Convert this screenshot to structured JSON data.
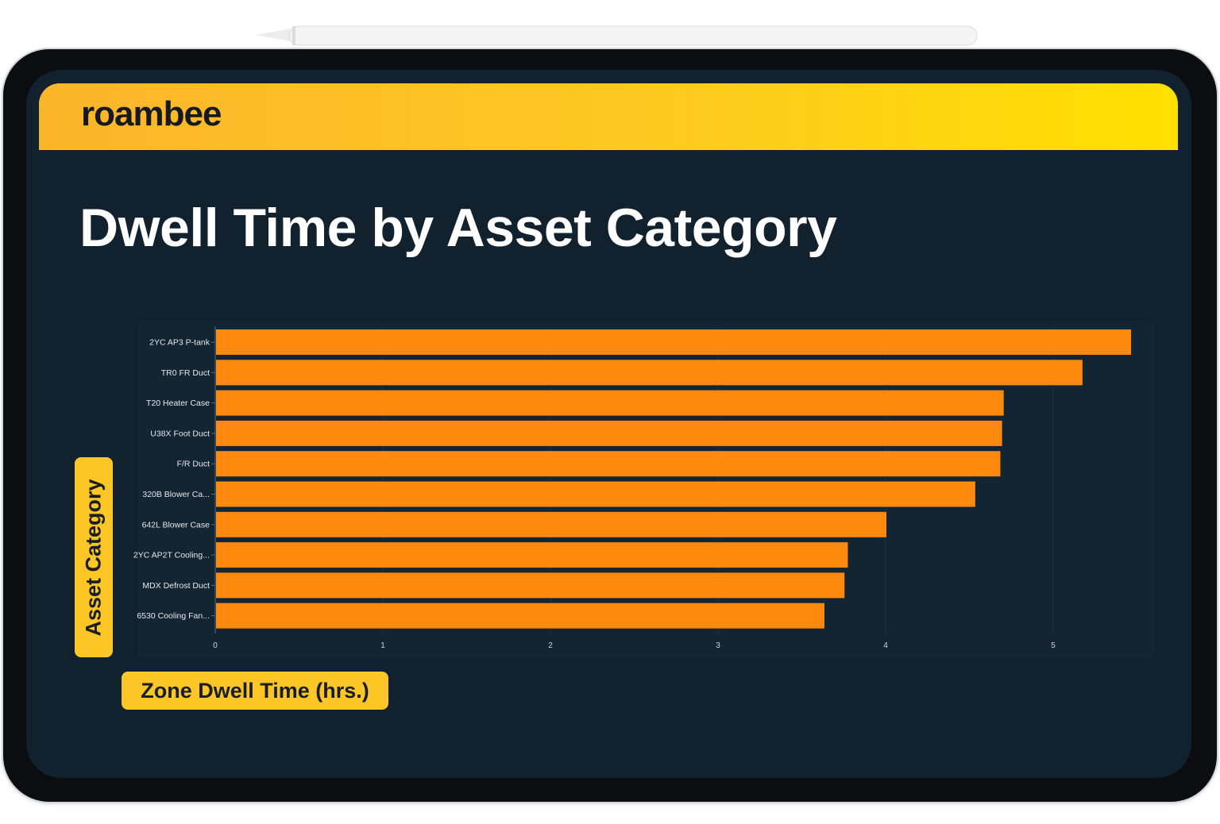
{
  "brand": {
    "logo_text": "roambee"
  },
  "colors": {
    "bar": "#fd8a0e",
    "accent": "#fcc627",
    "screen_bg": "#12212e"
  },
  "chart_data": {
    "type": "bar",
    "orientation": "horizontal",
    "title": "Dwell Time by Asset Category",
    "xlabel": "Zone Dwell Time (hrs.)",
    "ylabel": "Asset Category",
    "categories": [
      "2YC AP3 P-tank",
      "TR0 FR Duct",
      "T20 Heater Case",
      "U38X Foot Duct",
      "F/R Duct",
      "320B Blower Ca...",
      "642L Blower Case",
      "2YC AP2T Cooling...",
      "MDX Defrost Duct",
      "6530 Cooling Fan..."
    ],
    "values": [
      5.46,
      5.17,
      4.7,
      4.69,
      4.68,
      4.53,
      4.0,
      3.77,
      3.75,
      3.63
    ],
    "xlim": [
      0,
      5.5
    ],
    "xticks": [
      "0",
      "1",
      "2",
      "3",
      "4",
      "5"
    ],
    "grid": true,
    "legend": "none"
  }
}
